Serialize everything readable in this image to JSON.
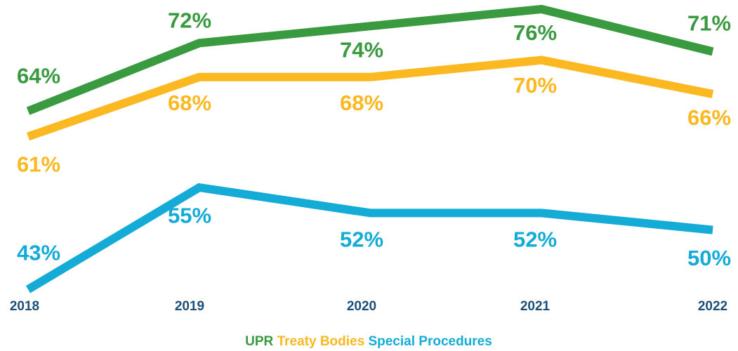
{
  "chart_data": {
    "type": "line",
    "categories": [
      "2018",
      "2019",
      "2020",
      "2021",
      "2022"
    ],
    "series": [
      {
        "name": "UPR",
        "color": "#3a9a40",
        "values": [
          64,
          72,
          74,
          76,
          71
        ],
        "value_labels": [
          "64%",
          "72%",
          "74%",
          "76%",
          "71%"
        ]
      },
      {
        "name": "Treaty Bodies",
        "color": "#fbb820",
        "values": [
          61,
          68,
          68,
          70,
          66
        ],
        "value_labels": [
          "61%",
          "68%",
          "68%",
          "70%",
          "66%"
        ]
      },
      {
        "name": "Special Procedures",
        "color": "#14acd7",
        "values": [
          43,
          55,
          52,
          52,
          50
        ],
        "value_labels": [
          "43%",
          "55%",
          "52%",
          "52%",
          "50%"
        ]
      }
    ],
    "ylim": [
      40,
      77
    ]
  }
}
